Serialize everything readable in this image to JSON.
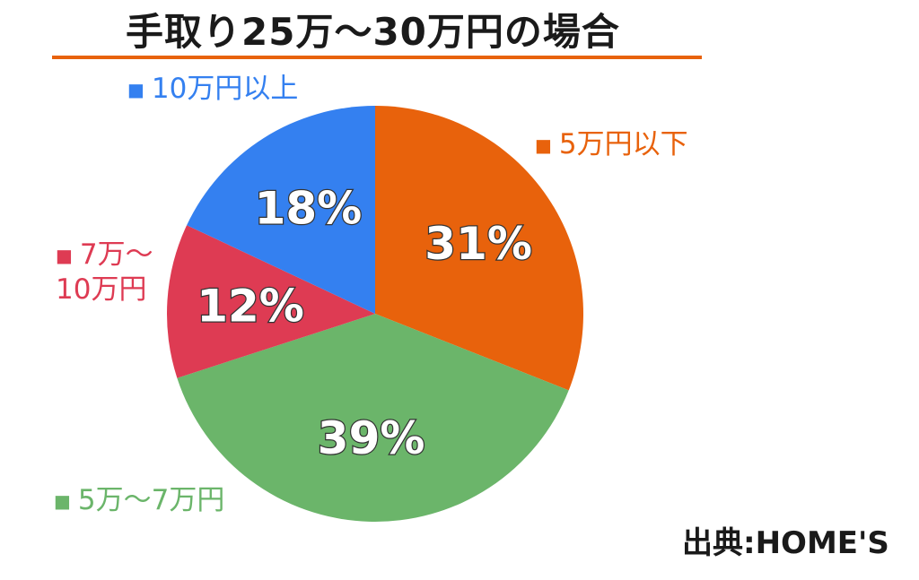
{
  "title": "手取り25万～30万円の場合",
  "source": "出典:HOME'S",
  "chart_data": {
    "type": "pie",
    "slices": [
      {
        "label": "5万円以下",
        "value": 31,
        "value_label": "31%",
        "color": "#e8620c"
      },
      {
        "label": "5万～7万円",
        "value": 39,
        "value_label": "39%",
        "color": "#6bb56a"
      },
      {
        "label": "7万～10万円",
        "value": 12,
        "value_label": "12%",
        "color": "#de3b53"
      },
      {
        "label": "10万円以上",
        "value": 18,
        "value_label": "18%",
        "color": "#3480f0"
      }
    ]
  }
}
